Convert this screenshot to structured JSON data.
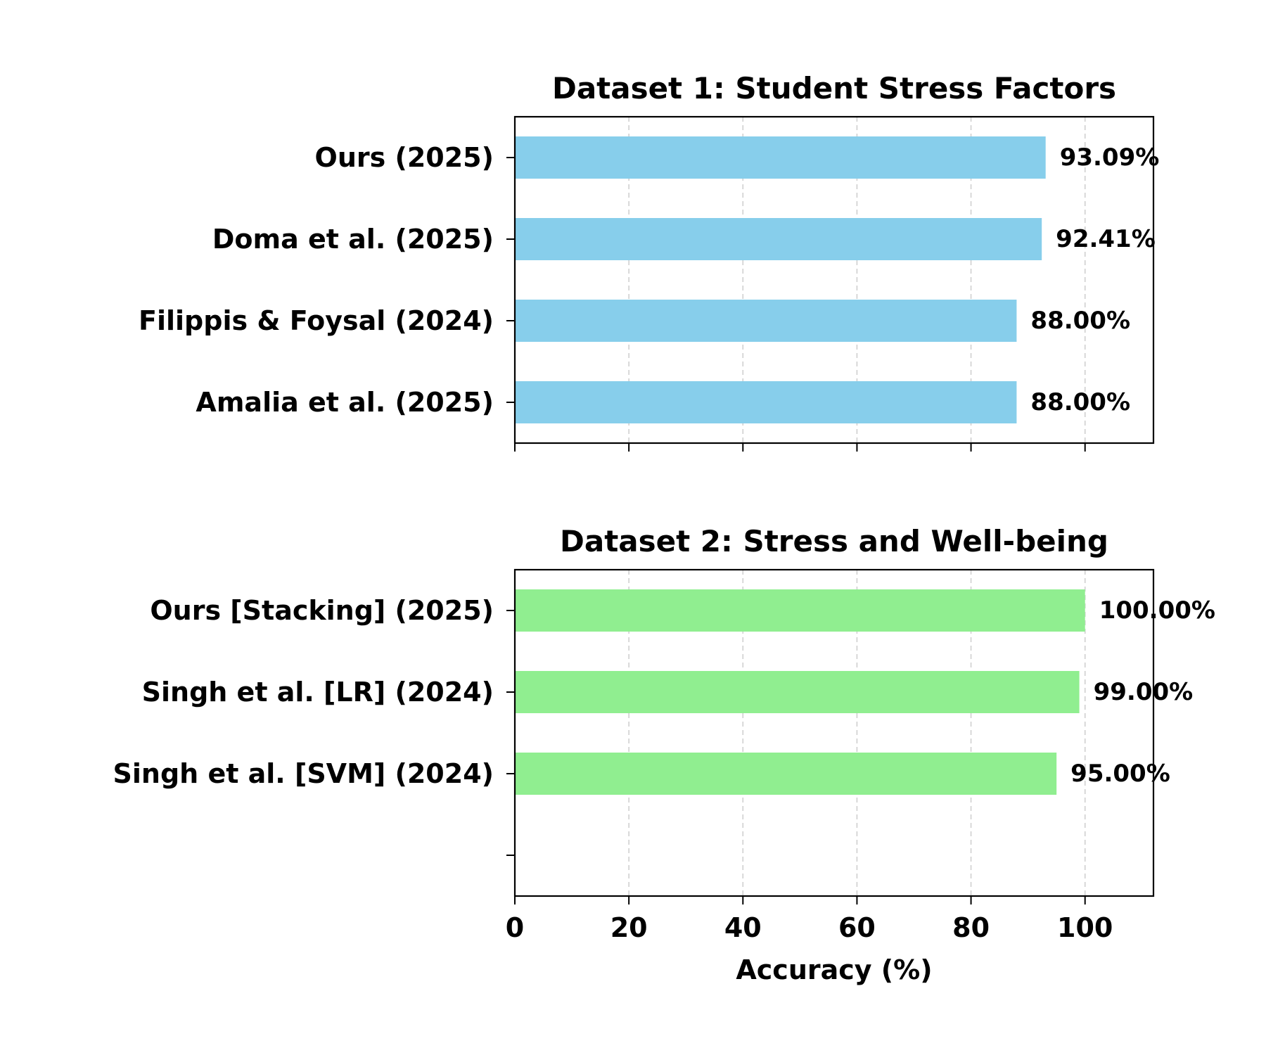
{
  "chart_data": [
    {
      "type": "bar",
      "orientation": "horizontal",
      "title": "Dataset 1: Student Stress Factors",
      "categories": [
        "Ours (2025)",
        "Doma et al. (2025)",
        "Filippis & Foysal (2024)",
        "Amalia et al. (2025)"
      ],
      "values": [
        93.09,
        92.41,
        88.0,
        88.0
      ],
      "value_labels": [
        "93.09%",
        "92.41%",
        "88.00%",
        "88.00%"
      ],
      "color": "#87CEEB",
      "xlim": [
        0,
        112
      ],
      "xticks": [
        0,
        20,
        40,
        60,
        80,
        100
      ],
      "xtick_labels_shown": false,
      "xlabel": "",
      "grid": "x, dashed",
      "legend": "none"
    },
    {
      "type": "bar",
      "orientation": "horizontal",
      "title": "Dataset 2: Stress and Well-being",
      "categories": [
        "Ours [Stacking] (2025)",
        "Singh et al. [LR] (2024)",
        "Singh et al. [SVM] (2024)",
        ""
      ],
      "values": [
        100.0,
        99.0,
        95.0,
        null
      ],
      "value_labels": [
        "100.00%",
        "99.00%",
        "95.00%",
        ""
      ],
      "color": "#90EE90",
      "xlim": [
        0,
        112
      ],
      "xticks": [
        0,
        20,
        40,
        60,
        80,
        100
      ],
      "xtick_labels": [
        "0",
        "20",
        "40",
        "60",
        "80",
        "100"
      ],
      "xtick_labels_shown": true,
      "xlabel": "Accuracy (%)",
      "grid": "x, dashed",
      "legend": "none"
    }
  ]
}
